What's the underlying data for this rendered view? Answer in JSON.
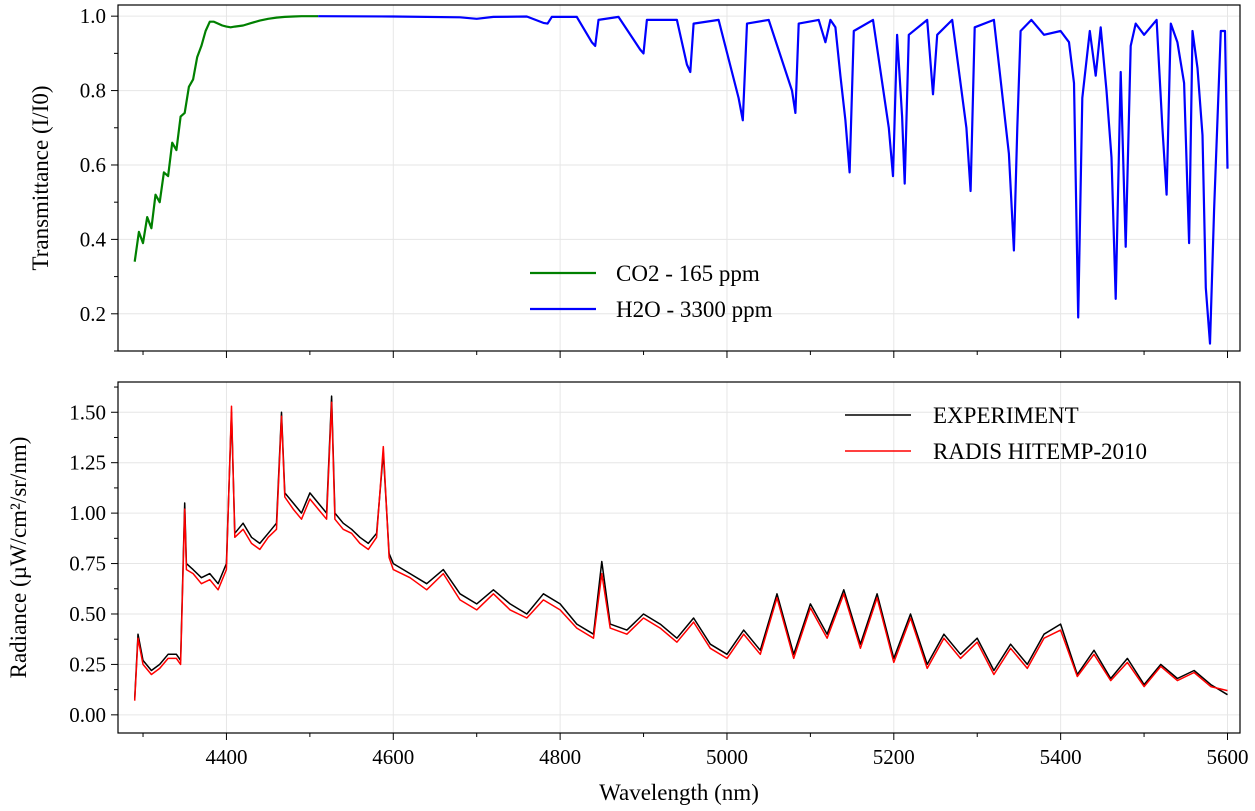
{
  "chart_data": [
    {
      "type": "line",
      "xlabel": "",
      "ylabel": "Transmittance (I/I0)",
      "xlim": [
        4270,
        5615
      ],
      "ylim": [
        0.1,
        1.03
      ],
      "xticks": [
        4400,
        4600,
        4800,
        5000,
        5200,
        5400,
        5600
      ],
      "yticks": [
        "0.2",
        "0.4",
        "0.6",
        "0.8",
        "1.0"
      ],
      "grid": true,
      "legend": "lower-center",
      "series": [
        {
          "name": "CO2 - 165 ppm",
          "color": "#008000",
          "x": [
            4290,
            4295,
            4300,
            4305,
            4310,
            4315,
            4320,
            4325,
            4330,
            4335,
            4340,
            4345,
            4350,
            4355,
            4360,
            4365,
            4370,
            4375,
            4380,
            4385,
            4390,
            4395,
            4400,
            4405,
            4410,
            4420,
            4430,
            4440,
            4450,
            4460,
            4470,
            4480,
            4490,
            4500,
            4510
          ],
          "y": [
            0.34,
            0.42,
            0.39,
            0.46,
            0.43,
            0.52,
            0.5,
            0.58,
            0.57,
            0.66,
            0.64,
            0.73,
            0.74,
            0.81,
            0.83,
            0.89,
            0.92,
            0.96,
            0.985,
            0.985,
            0.98,
            0.975,
            0.972,
            0.97,
            0.972,
            0.975,
            0.982,
            0.988,
            0.993,
            0.996,
            0.998,
            0.999,
            1.0,
            1.0,
            1.0
          ]
        },
        {
          "name": "H2O - 3300 ppm",
          "color": "#0000ff",
          "x": [
            4510,
            4600,
            4680,
            4700,
            4720,
            4760,
            4780,
            4785,
            4790,
            4820,
            4838,
            4842,
            4846,
            4870,
            4896,
            4900,
            4904,
            4940,
            4952,
            4956,
            4960,
            4990,
            5014,
            5019,
            5024,
            5050,
            5078,
            5082,
            5086,
            5110,
            5118,
            5124,
            5130,
            5136,
            5142,
            5147,
            5152,
            5175,
            5194,
            5199,
            5204,
            5210,
            5213,
            5218,
            5240,
            5247,
            5252,
            5270,
            5287,
            5292,
            5297,
            5320,
            5338,
            5344,
            5348,
            5352,
            5365,
            5380,
            5400,
            5410,
            5416,
            5421,
            5426,
            5435,
            5442,
            5448,
            5455,
            5461,
            5466,
            5472,
            5478,
            5484,
            5490,
            5500,
            5515,
            5522,
            5527,
            5532,
            5540,
            5548,
            5554,
            5558,
            5564,
            5570,
            5574,
            5579,
            5584,
            5592,
            5597,
            5600
          ],
          "y": [
            1.0,
            0.999,
            0.997,
            0.993,
            0.998,
            0.999,
            0.982,
            0.98,
            0.998,
            0.998,
            0.93,
            0.92,
            0.99,
            0.998,
            0.91,
            0.9,
            0.99,
            0.99,
            0.87,
            0.85,
            0.98,
            0.99,
            0.78,
            0.72,
            0.98,
            0.99,
            0.8,
            0.74,
            0.98,
            0.99,
            0.93,
            0.99,
            0.97,
            0.84,
            0.72,
            0.58,
            0.96,
            0.99,
            0.7,
            0.57,
            0.95,
            0.73,
            0.55,
            0.95,
            0.99,
            0.79,
            0.95,
            0.99,
            0.7,
            0.53,
            0.97,
            0.99,
            0.63,
            0.37,
            0.7,
            0.96,
            0.99,
            0.95,
            0.96,
            0.93,
            0.82,
            0.19,
            0.78,
            0.96,
            0.84,
            0.97,
            0.8,
            0.62,
            0.24,
            0.85,
            0.38,
            0.92,
            0.98,
            0.95,
            0.99,
            0.7,
            0.52,
            0.98,
            0.93,
            0.82,
            0.39,
            0.96,
            0.86,
            0.68,
            0.27,
            0.12,
            0.48,
            0.96,
            0.96,
            0.59
          ]
        }
      ]
    },
    {
      "type": "line",
      "xlabel": "Wavelength (nm)",
      "ylabel": "Radiance (µW/cm²/sr/nm)",
      "xlim": [
        4270,
        5615
      ],
      "ylim": [
        -0.09,
        1.65
      ],
      "xticks": [
        4400,
        4600,
        4800,
        5000,
        5200,
        5400,
        5600
      ],
      "yticks": [
        "0.00",
        "0.25",
        "0.50",
        "0.75",
        "1.00",
        "1.25",
        "1.50"
      ],
      "grid": true,
      "legend": "top-right",
      "series": [
        {
          "name": "EXPERIMENT",
          "color": "#000000",
          "x": [
            4290,
            4294,
            4300,
            4310,
            4320,
            4330,
            4340,
            4345,
            4350,
            4352,
            4360,
            4370,
            4380,
            4390,
            4400,
            4406,
            4410,
            4420,
            4430,
            4440,
            4450,
            4460,
            4466,
            4470,
            4480,
            4490,
            4500,
            4510,
            4520,
            4526,
            4530,
            4540,
            4550,
            4560,
            4570,
            4580,
            4588,
            4595,
            4600,
            4620,
            4640,
            4660,
            4680,
            4700,
            4720,
            4740,
            4760,
            4780,
            4800,
            4820,
            4840,
            4850,
            4860,
            4880,
            4900,
            4920,
            4940,
            4960,
            4980,
            5000,
            5020,
            5040,
            5060,
            5080,
            5100,
            5120,
            5140,
            5160,
            5180,
            5200,
            5220,
            5240,
            5260,
            5280,
            5300,
            5320,
            5340,
            5360,
            5380,
            5400,
            5420,
            5440,
            5460,
            5480,
            5500,
            5520,
            5540,
            5560,
            5580,
            5600
          ],
          "y": [
            0.08,
            0.4,
            0.27,
            0.22,
            0.25,
            0.3,
            0.3,
            0.27,
            1.05,
            0.75,
            0.72,
            0.68,
            0.7,
            0.65,
            0.75,
            1.5,
            0.9,
            0.95,
            0.88,
            0.85,
            0.9,
            0.95,
            1.5,
            1.1,
            1.05,
            1.0,
            1.1,
            1.05,
            1.0,
            1.58,
            1.0,
            0.95,
            0.92,
            0.88,
            0.85,
            0.9,
            1.3,
            0.8,
            0.75,
            0.7,
            0.65,
            0.72,
            0.6,
            0.55,
            0.62,
            0.55,
            0.5,
            0.6,
            0.55,
            0.45,
            0.4,
            0.76,
            0.45,
            0.42,
            0.5,
            0.45,
            0.38,
            0.48,
            0.35,
            0.3,
            0.42,
            0.32,
            0.6,
            0.3,
            0.55,
            0.4,
            0.62,
            0.35,
            0.6,
            0.28,
            0.5,
            0.25,
            0.4,
            0.3,
            0.38,
            0.22,
            0.35,
            0.25,
            0.4,
            0.45,
            0.2,
            0.32,
            0.18,
            0.28,
            0.15,
            0.25,
            0.18,
            0.22,
            0.15,
            0.1
          ]
        },
        {
          "name": "RADIS HITEMP-2010",
          "color": "#ff0000",
          "x": [
            4290,
            4294,
            4300,
            4310,
            4320,
            4330,
            4340,
            4345,
            4350,
            4352,
            4360,
            4370,
            4380,
            4390,
            4400,
            4406,
            4410,
            4420,
            4430,
            4440,
            4450,
            4460,
            4466,
            4470,
            4480,
            4490,
            4500,
            4510,
            4520,
            4526,
            4530,
            4540,
            4550,
            4560,
            4570,
            4580,
            4588,
            4595,
            4600,
            4620,
            4640,
            4660,
            4680,
            4700,
            4720,
            4740,
            4760,
            4780,
            4800,
            4820,
            4840,
            4850,
            4860,
            4880,
            4900,
            4920,
            4940,
            4960,
            4980,
            5000,
            5020,
            5040,
            5060,
            5080,
            5100,
            5120,
            5140,
            5160,
            5180,
            5200,
            5220,
            5240,
            5260,
            5280,
            5300,
            5320,
            5340,
            5360,
            5380,
            5400,
            5420,
            5440,
            5460,
            5480,
            5500,
            5520,
            5540,
            5560,
            5580,
            5600
          ],
          "y": [
            0.07,
            0.38,
            0.25,
            0.2,
            0.23,
            0.28,
            0.28,
            0.25,
            1.02,
            0.72,
            0.7,
            0.65,
            0.67,
            0.62,
            0.72,
            1.53,
            0.88,
            0.92,
            0.85,
            0.82,
            0.88,
            0.92,
            1.48,
            1.08,
            1.02,
            0.97,
            1.07,
            1.02,
            0.97,
            1.55,
            0.97,
            0.92,
            0.9,
            0.85,
            0.82,
            0.88,
            1.33,
            0.78,
            0.72,
            0.68,
            0.62,
            0.7,
            0.57,
            0.52,
            0.6,
            0.52,
            0.48,
            0.57,
            0.52,
            0.43,
            0.38,
            0.7,
            0.43,
            0.4,
            0.48,
            0.43,
            0.36,
            0.46,
            0.33,
            0.28,
            0.4,
            0.3,
            0.58,
            0.28,
            0.53,
            0.38,
            0.6,
            0.33,
            0.58,
            0.26,
            0.48,
            0.23,
            0.38,
            0.28,
            0.36,
            0.2,
            0.33,
            0.23,
            0.38,
            0.42,
            0.19,
            0.3,
            0.17,
            0.26,
            0.14,
            0.24,
            0.17,
            0.21,
            0.14,
            0.12
          ]
        }
      ]
    }
  ]
}
